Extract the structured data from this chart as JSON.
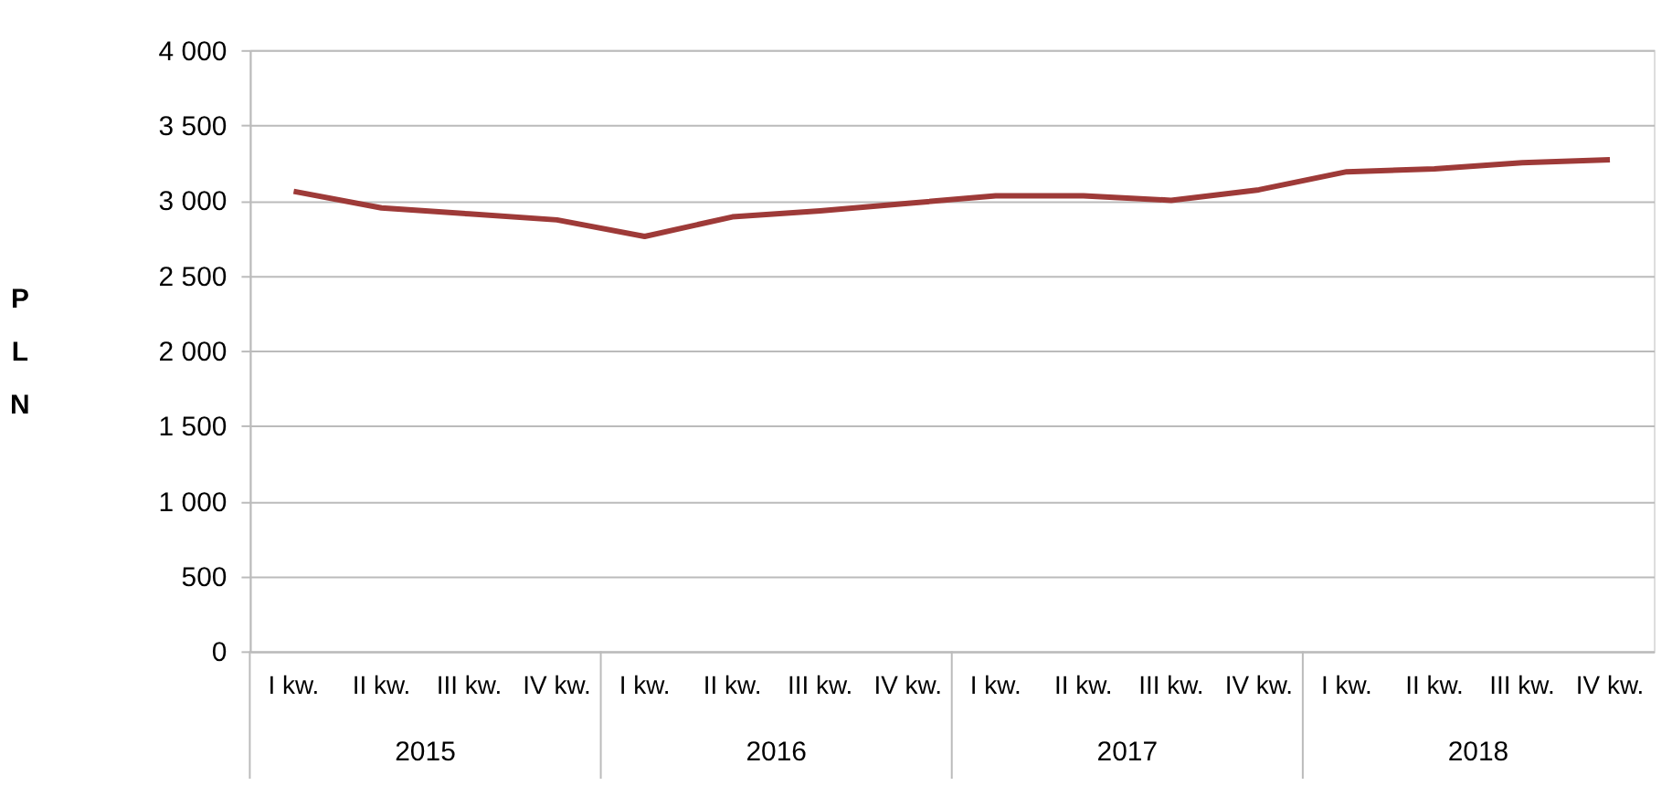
{
  "chart_data": {
    "type": "line",
    "ylabel": "PLN",
    "categories": [
      "I kw.",
      "II kw.",
      "III kw.",
      "IV kw.",
      "I kw.",
      "II kw.",
      "III kw.",
      "IV kw.",
      "I kw.",
      "II kw.",
      "III kw.",
      "IV kw.",
      "I kw.",
      "II kw.",
      "III kw.",
      "IV kw."
    ],
    "annotations": [
      "2015",
      "2016",
      "2017",
      "2018"
    ],
    "series": [
      {
        "color": "#9e3a38",
        "values": [
          3060,
          2950,
          2910,
          2870,
          2760,
          2890,
          2930,
          2980,
          3030,
          3030,
          3000,
          3070,
          3190,
          3210,
          3250,
          3270
        ]
      }
    ],
    "ylim": [
      0,
      4000
    ],
    "yticks": [
      0,
      500,
      {
        "value": 1000,
        "label": "1 000"
      },
      {
        "value": 1500,
        "label": "1 500"
      },
      {
        "value": 2000,
        "label": "2 000"
      },
      {
        "value": 2500,
        "label": "2 500"
      },
      {
        "value": 3000,
        "label": "3 000"
      },
      {
        "value": 3500,
        "label": "3 500"
      },
      {
        "value": 4000,
        "label": "4 000"
      }
    ],
    "grid": "y",
    "marker": "none",
    "line_style": "solid",
    "legend": false
  }
}
